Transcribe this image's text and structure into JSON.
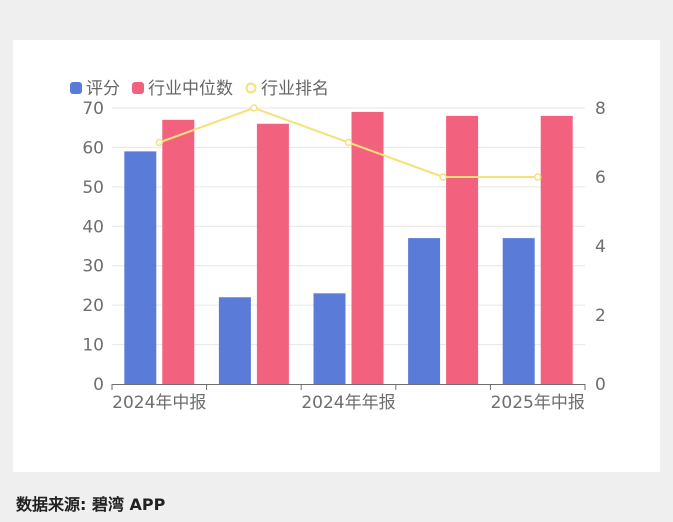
{
  "source_label": "数据来源: 碧湾 APP",
  "chart_data": {
    "type": "bar",
    "categories": [
      "2024年中报",
      "",
      "2024年年报",
      "",
      "2025年中报"
    ],
    "x_tick_labels": [
      "2024年中报",
      "2024年年报",
      "2025年中报"
    ],
    "series": [
      {
        "name": "评分",
        "type": "bar",
        "axis": "left",
        "values": [
          59,
          22,
          23,
          37,
          37
        ],
        "color": "#5b7bd9"
      },
      {
        "name": "行业中位数",
        "type": "bar",
        "axis": "left",
        "values": [
          67,
          66,
          69,
          68,
          68
        ],
        "color": "#f2627e"
      },
      {
        "name": "行业排名",
        "type": "line",
        "axis": "right",
        "values": [
          7,
          8,
          7,
          6,
          6
        ],
        "color": "#f5e07a"
      }
    ],
    "y_left": {
      "min": 0,
      "max": 70,
      "ticks": [
        0,
        10,
        20,
        30,
        40,
        50,
        60,
        70
      ]
    },
    "y_right": {
      "min": 0,
      "max": 8,
      "ticks": [
        0,
        2,
        4,
        6,
        8
      ]
    },
    "grid": true,
    "legend": "top-left"
  }
}
